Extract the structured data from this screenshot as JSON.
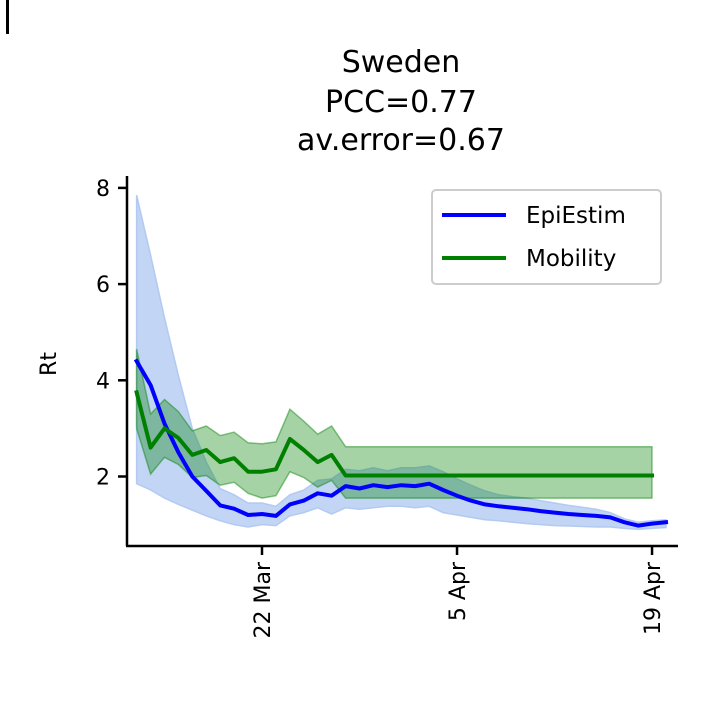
{
  "chart_data": {
    "type": "line",
    "title": [
      "Sweden",
      "PCC=0.77",
      "av.error=0.67"
    ],
    "xlabel": "",
    "ylabel": "Rt",
    "ylim": [
      0.6,
      8.3
    ],
    "yticks": [
      2,
      4,
      6,
      8
    ],
    "xticks": [
      {
        "date": "2020-03-22",
        "label": "22 Mar"
      },
      {
        "date": "2020-04-05",
        "label": "5 Apr"
      },
      {
        "date": "2020-04-19",
        "label": "19 Apr"
      }
    ],
    "legend": {
      "position": "top-right"
    },
    "grid": false,
    "series": [
      {
        "name": "EpiEstim",
        "color": "#0000ff",
        "band_color": "#aec7f2",
        "dates": [
          "2020-03-13",
          "2020-03-14",
          "2020-03-15",
          "2020-03-16",
          "2020-03-17",
          "2020-03-18",
          "2020-03-19",
          "2020-03-20",
          "2020-03-21",
          "2020-03-22",
          "2020-03-23",
          "2020-03-24",
          "2020-03-25",
          "2020-03-26",
          "2020-03-27",
          "2020-03-28",
          "2020-03-29",
          "2020-03-30",
          "2020-03-31",
          "2020-04-01",
          "2020-04-02",
          "2020-04-03",
          "2020-04-04",
          "2020-04-05",
          "2020-04-06",
          "2020-04-07",
          "2020-04-08",
          "2020-04-09",
          "2020-04-10",
          "2020-04-11",
          "2020-04-12",
          "2020-04-13",
          "2020-04-14",
          "2020-04-15",
          "2020-04-16",
          "2020-04-17",
          "2020-04-18",
          "2020-04-19",
          "2020-04-20"
        ],
        "values": [
          4.4,
          3.9,
          3.1,
          2.5,
          2.0,
          1.7,
          1.4,
          1.33,
          1.2,
          1.22,
          1.18,
          1.42,
          1.5,
          1.65,
          1.6,
          1.8,
          1.75,
          1.82,
          1.78,
          1.82,
          1.8,
          1.85,
          1.72,
          1.6,
          1.5,
          1.42,
          1.38,
          1.35,
          1.32,
          1.28,
          1.25,
          1.22,
          1.2,
          1.18,
          1.15,
          1.05,
          0.98,
          1.02,
          1.05
        ],
        "lower": [
          1.85,
          1.72,
          1.55,
          1.42,
          1.3,
          1.18,
          1.08,
          1.0,
          0.95,
          1.0,
          0.98,
          1.18,
          1.25,
          1.35,
          1.22,
          1.35,
          1.32,
          1.35,
          1.38,
          1.38,
          1.35,
          1.38,
          1.25,
          1.2,
          1.15,
          1.1,
          1.08,
          1.05,
          1.02,
          1.0,
          0.98,
          0.97,
          0.96,
          0.95,
          0.95,
          0.92,
          0.9,
          0.92,
          0.94
        ],
        "upper": [
          7.85,
          6.6,
          5.3,
          4.1,
          3.0,
          2.3,
          1.75,
          1.62,
          1.45,
          1.45,
          1.38,
          1.62,
          1.72,
          1.92,
          1.95,
          2.15,
          2.12,
          2.18,
          2.12,
          2.18,
          2.18,
          2.22,
          2.1,
          1.95,
          1.82,
          1.7,
          1.62,
          1.58,
          1.55,
          1.5,
          1.45,
          1.4,
          1.36,
          1.32,
          1.25,
          1.12,
          1.05,
          1.08,
          1.1
        ]
      },
      {
        "name": "Mobility",
        "color": "#008000",
        "band_color": "#008000",
        "dates": [
          "2020-03-13",
          "2020-03-14",
          "2020-03-15",
          "2020-03-16",
          "2020-03-17",
          "2020-03-18",
          "2020-03-19",
          "2020-03-20",
          "2020-03-21",
          "2020-03-22",
          "2020-03-23",
          "2020-03-24",
          "2020-03-25",
          "2020-03-26",
          "2020-03-27",
          "2020-03-28",
          "2020-03-29",
          "2020-03-30",
          "2020-03-31",
          "2020-04-01",
          "2020-04-02",
          "2020-04-03",
          "2020-04-04",
          "2020-04-05",
          "2020-04-06",
          "2020-04-07",
          "2020-04-08",
          "2020-04-09",
          "2020-04-10",
          "2020-04-11",
          "2020-04-12",
          "2020-04-13",
          "2020-04-14",
          "2020-04-15",
          "2020-04-16",
          "2020-04-17",
          "2020-04-18",
          "2020-04-19"
        ],
        "values": [
          3.75,
          2.6,
          3.0,
          2.8,
          2.45,
          2.55,
          2.3,
          2.38,
          2.1,
          2.1,
          2.15,
          2.78,
          2.55,
          2.3,
          2.45,
          2.02,
          2.02,
          2.02,
          2.02,
          2.02,
          2.02,
          2.02,
          2.02,
          2.02,
          2.02,
          2.02,
          2.02,
          2.02,
          2.02,
          2.02,
          2.02,
          2.02,
          2.02,
          2.02,
          2.02,
          2.02,
          2.02,
          2.02
        ],
        "lower": [
          3.0,
          2.05,
          2.4,
          2.25,
          1.98,
          2.02,
          1.82,
          1.88,
          1.65,
          1.55,
          1.6,
          2.1,
          1.98,
          1.78,
          1.92,
          1.55,
          1.55,
          1.55,
          1.55,
          1.55,
          1.55,
          1.55,
          1.55,
          1.55,
          1.55,
          1.55,
          1.55,
          1.55,
          1.55,
          1.55,
          1.55,
          1.55,
          1.55,
          1.55,
          1.55,
          1.55,
          1.55,
          1.55
        ],
        "upper": [
          4.65,
          3.3,
          3.6,
          3.35,
          2.95,
          3.05,
          2.85,
          2.92,
          2.7,
          2.68,
          2.72,
          3.4,
          3.15,
          2.88,
          3.05,
          2.62,
          2.62,
          2.62,
          2.62,
          2.62,
          2.62,
          2.62,
          2.62,
          2.62,
          2.62,
          2.62,
          2.62,
          2.62,
          2.62,
          2.62,
          2.62,
          2.62,
          2.62,
          2.62,
          2.62,
          2.62,
          2.62,
          2.62
        ]
      }
    ]
  }
}
